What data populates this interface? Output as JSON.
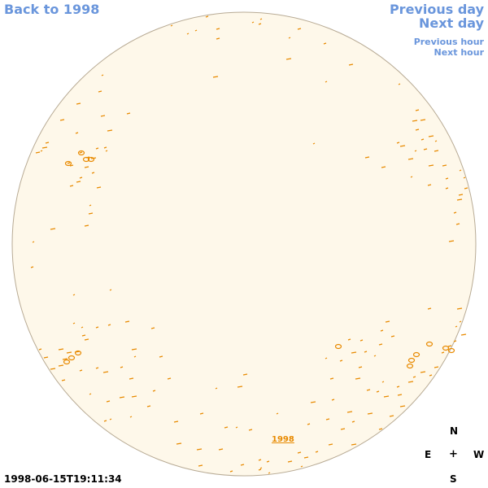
{
  "nav": {
    "back_label": "Back to 1998",
    "previous_day": "Previous day",
    "next_day": "Next day",
    "previous_hour": "Previous hour",
    "next_hour": "Next hour"
  },
  "disk": {
    "fill_color": "#fef8ea",
    "border_color": "#b8ab95",
    "feature_color": "#e88a00"
  },
  "year_link": "1998",
  "timestamp": "1998-06-15T19:11:34",
  "compass": {
    "north": "N",
    "east": "E",
    "center": "+",
    "west": "W",
    "south": "S"
  }
}
